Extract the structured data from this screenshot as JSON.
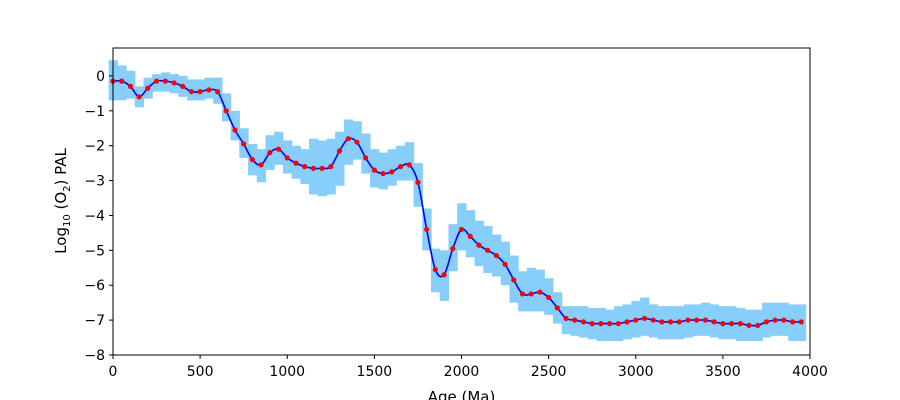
{
  "chart_data": {
    "type": "line",
    "xlabel": "Age (Ma)",
    "ylabel": {
      "prefix": "Log",
      "sub1": "10",
      "mid": " (O",
      "sub2": "2",
      "suffix": ") PAL"
    },
    "xlim": [
      0,
      4000
    ],
    "ylim": [
      -8,
      0.8
    ],
    "xticks": [
      0,
      500,
      1000,
      1500,
      2000,
      2500,
      3000,
      3500,
      4000
    ],
    "yticks": [
      0,
      -1,
      -2,
      -3,
      -4,
      -5,
      -6,
      -7,
      -8
    ],
    "grid": false,
    "colors": {
      "band": "#87cefa",
      "line": "#0000ff",
      "points": "#ff0000"
    },
    "band_step": 50,
    "series": [
      {
        "x": [
          0,
          50,
          100,
          150,
          200,
          250,
          300,
          350,
          400,
          450,
          500,
          550,
          600,
          650,
          700,
          750,
          800,
          850,
          900,
          950,
          1000,
          1050,
          1100,
          1150,
          1200,
          1250,
          1300,
          1350,
          1400,
          1450,
          1500,
          1550,
          1600,
          1650,
          1700,
          1750,
          1800,
          1850,
          1900,
          1950,
          2000,
          2050,
          2100,
          2150,
          2200,
          2250,
          2300,
          2350,
          2400,
          2450,
          2500,
          2550,
          2600,
          2650,
          2700,
          2750,
          2800,
          2850,
          2900,
          2950,
          3000,
          3050,
          3100,
          3150,
          3200,
          3250,
          3300,
          3350,
          3400,
          3450,
          3500,
          3550,
          3600,
          3650,
          3700,
          3750,
          3800,
          3850,
          3900,
          3950
        ],
        "y": [
          -0.15,
          -0.15,
          -0.3,
          -0.6,
          -0.35,
          -0.15,
          -0.15,
          -0.2,
          -0.3,
          -0.45,
          -0.45,
          -0.4,
          -0.45,
          -1.0,
          -1.55,
          -1.95,
          -2.4,
          -2.55,
          -2.2,
          -2.1,
          -2.35,
          -2.5,
          -2.6,
          -2.65,
          -2.65,
          -2.6,
          -2.15,
          -1.8,
          -1.9,
          -2.35,
          -2.7,
          -2.8,
          -2.75,
          -2.6,
          -2.55,
          -3.05,
          -4.4,
          -5.55,
          -5.7,
          -4.95,
          -4.4,
          -4.6,
          -4.85,
          -5.0,
          -5.15,
          -5.4,
          -5.85,
          -6.25,
          -6.25,
          -6.2,
          -6.35,
          -6.65,
          -6.95,
          -7.0,
          -7.05,
          -7.1,
          -7.1,
          -7.1,
          -7.1,
          -7.05,
          -7.0,
          -6.95,
          -7.0,
          -7.05,
          -7.05,
          -7.05,
          -7.0,
          -7.0,
          -7.0,
          -7.05,
          -7.1,
          -7.1,
          -7.1,
          -7.15,
          -7.15,
          -7.05,
          -7.0,
          -7.0,
          -7.05,
          -7.05
        ],
        "y_low": [
          -0.7,
          -0.7,
          -0.65,
          -0.9,
          -0.65,
          -0.45,
          -0.45,
          -0.5,
          -0.6,
          -0.7,
          -0.7,
          -0.65,
          -0.8,
          -1.3,
          -1.85,
          -2.35,
          -2.85,
          -3.05,
          -2.7,
          -2.55,
          -2.8,
          -2.95,
          -3.1,
          -3.4,
          -3.45,
          -3.4,
          -3.15,
          -2.55,
          -2.4,
          -2.8,
          -3.2,
          -3.25,
          -3.15,
          -3.0,
          -3.0,
          -3.75,
          -5.0,
          -6.2,
          -6.45,
          -5.6,
          -5.0,
          -5.2,
          -5.45,
          -5.65,
          -5.75,
          -6.0,
          -6.5,
          -6.75,
          -6.75,
          -6.75,
          -6.85,
          -7.1,
          -7.4,
          -7.45,
          -7.5,
          -7.55,
          -7.6,
          -7.6,
          -7.6,
          -7.55,
          -7.5,
          -7.45,
          -7.5,
          -7.55,
          -7.55,
          -7.55,
          -7.5,
          -7.45,
          -7.45,
          -7.5,
          -7.55,
          -7.55,
          -7.6,
          -7.6,
          -7.6,
          -7.5,
          -7.45,
          -7.45,
          -7.6,
          -7.6
        ],
        "y_high": [
          0.45,
          0.3,
          0.15,
          -0.3,
          -0.05,
          0.05,
          0.1,
          0.05,
          0.0,
          -0.1,
          -0.1,
          -0.05,
          -0.05,
          -0.5,
          -1.0,
          -1.5,
          -1.95,
          -2.1,
          -1.7,
          -1.6,
          -1.85,
          -2.0,
          -2.1,
          -1.8,
          -1.85,
          -1.8,
          -1.6,
          -1.25,
          -1.3,
          -1.65,
          -2.1,
          -2.2,
          -2.1,
          -2.0,
          -1.9,
          -2.5,
          -3.8,
          -4.95,
          -5.0,
          -4.25,
          -3.65,
          -3.85,
          -4.15,
          -4.3,
          -4.55,
          -4.75,
          -5.15,
          -5.6,
          -5.5,
          -5.55,
          -5.8,
          -6.2,
          -6.6,
          -6.6,
          -6.6,
          -6.65,
          -6.65,
          -6.7,
          -6.6,
          -6.55,
          -6.45,
          -6.35,
          -6.55,
          -6.6,
          -6.6,
          -6.6,
          -6.55,
          -6.55,
          -6.5,
          -6.55,
          -6.6,
          -6.6,
          -6.65,
          -6.7,
          -6.7,
          -6.5,
          -6.5,
          -6.5,
          -6.55,
          -6.55
        ]
      }
    ]
  }
}
